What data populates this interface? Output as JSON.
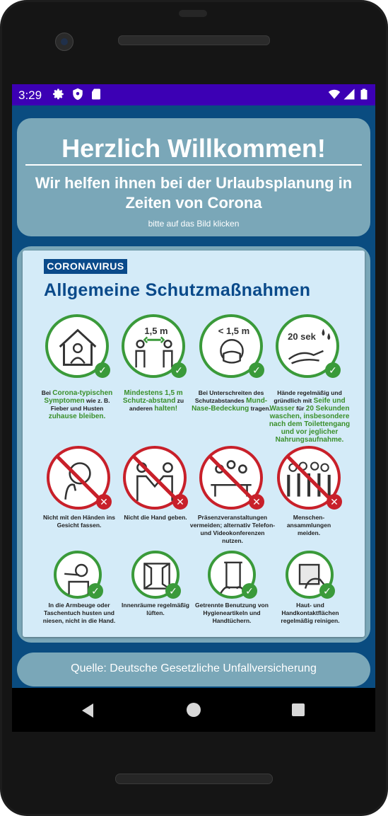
{
  "status_bar": {
    "time": "3:29",
    "icons": [
      "settings-icon",
      "shield-icon",
      "sd-card-icon",
      "wifi-icon",
      "cell-signal-icon",
      "battery-icon"
    ],
    "color": "#3c00b4"
  },
  "header": {
    "title": "Herzlich Willkommen!",
    "subtitle": "Wir helfen ihnen bei der Urlaubsplanung in Zeiten von Corona",
    "hint": "bitte auf das Bild klicken"
  },
  "poster": {
    "tag": "CORONAVIRUS",
    "title": "Allgemeine Schutzmaßnahmen",
    "row1": [
      {
        "icon": "house-stay-home-icon",
        "label": "",
        "caption": [
          "Bei ",
          "Corona-typischen Symptomen",
          " wie z. B. Fieber und Husten ",
          "zuhause bleiben."
        ],
        "status": "ok"
      },
      {
        "icon": "distance-icon",
        "label": "1,5 m",
        "caption": [
          "",
          "Mindestens 1,5 m Schutz-abstand",
          " zu anderen ",
          "halten!"
        ],
        "status": "ok"
      },
      {
        "icon": "mask-icon",
        "label": "< 1,5 m",
        "caption": [
          "Bei Unterschreiten des Schutzabstandes ",
          "Mund-Nase-Bedeckung",
          " tragen.",
          ""
        ],
        "status": "ok"
      },
      {
        "icon": "handwash-icon",
        "label": "20 sek",
        "caption": [
          "Hände regelmäßig und gründlich mit ",
          "Seife und Wasser",
          " für ",
          "20 Sekunden waschen, insbesondere nach dem Toilettengang und vor jeglicher Nahrungsaufnahme."
        ],
        "status": "ok"
      }
    ],
    "row2": [
      {
        "icon": "touch-face-icon",
        "caption": "Nicht mit den Händen ins Gesicht fassen.",
        "status": "no"
      },
      {
        "icon": "handshake-icon",
        "caption": "Nicht die Hand geben.",
        "status": "no"
      },
      {
        "icon": "meeting-icon",
        "caption": "Präsenzveranstaltungen vermeiden; alternativ Telefon- und Videokonferenzen nutzen.",
        "status": "no"
      },
      {
        "icon": "crowd-icon",
        "caption": "Menschen-ansammlungen meiden.",
        "status": "no"
      }
    ],
    "row3": [
      {
        "icon": "sneeze-elbow-icon",
        "caption": "In die Armbeuge oder Taschentuch husten und niesen, nicht in die Hand.",
        "status": "ok"
      },
      {
        "icon": "open-window-icon",
        "caption": "Innenräume regelmäßig lüften.",
        "status": "ok"
      },
      {
        "icon": "towel-icon",
        "caption": "Getrennte Benutzung von Hygieneartikeln und Handtüchern.",
        "status": "ok"
      },
      {
        "icon": "wipe-surface-icon",
        "caption": "Haut- und Handkontaktflächen regelmäßig reinigen.",
        "status": "ok"
      }
    ]
  },
  "footer": {
    "source": "Quelle: Deutsche Gesetzliche Unfallversicherung"
  },
  "nav": {
    "buttons": [
      "back-icon",
      "home-icon",
      "recents-icon"
    ]
  },
  "colors": {
    "card": "#7aa7b8",
    "screen_bg": "#0a4c80",
    "poster_bg": "#d4ebf8",
    "green": "#3a9a3a",
    "red": "#c8202a",
    "navy": "#0a4a8a"
  }
}
